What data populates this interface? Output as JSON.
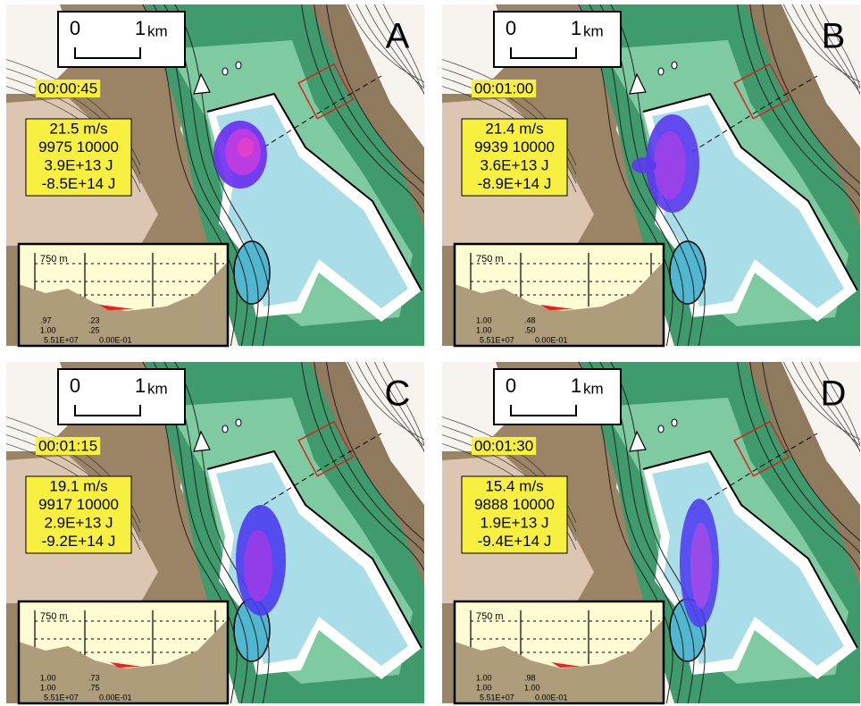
{
  "panels": [
    {
      "letter": "A",
      "scale": {
        "zero": "0",
        "one": "1",
        "unit": "km"
      },
      "time": "00:00:45",
      "stats": [
        "21.5 m/s",
        "9975 10000",
        "3.9E+13 J",
        "-8.5E+14 J"
      ],
      "inset": {
        "height": "750 m",
        "rows": [
          [
            ".97",
            ".23"
          ],
          [
            "1.00",
            ".25"
          ]
        ],
        "footer": [
          "5.51E+07",
          "0.00E-01"
        ]
      }
    },
    {
      "letter": "B",
      "scale": {
        "zero": "0",
        "one": "1",
        "unit": "km"
      },
      "time": "00:01:00",
      "stats": [
        "21.4 m/s",
        "9939 10000",
        "3.6E+13 J",
        "-8.9E+14 J"
      ],
      "inset": {
        "height": "750 m",
        "rows": [
          [
            "1.00",
            ".48"
          ],
          [
            "1.00",
            ".50"
          ]
        ],
        "footer": [
          "5.51E+07",
          "0.00E-01"
        ]
      }
    },
    {
      "letter": "C",
      "scale": {
        "zero": "0",
        "one": "1",
        "unit": "km"
      },
      "time": "00:01:15",
      "stats": [
        "19.1 m/s",
        "9917 10000",
        "2.9E+13 J",
        "-9.2E+14 J"
      ],
      "inset": {
        "height": "750 m",
        "rows": [
          [
            "1.00",
            ".73"
          ],
          [
            "1.00",
            ".75"
          ]
        ],
        "footer": [
          "5.51E+07",
          "0.00E-01"
        ]
      }
    },
    {
      "letter": "D",
      "scale": {
        "zero": "0",
        "one": "1",
        "unit": "km"
      },
      "time": "00:01:30",
      "stats": [
        "15.4 m/s",
        "9888 10000",
        "1.9E+13 J",
        "-9.4E+14 J"
      ],
      "inset": {
        "height": "750 m",
        "rows": [
          [
            "1.00",
            ".98"
          ],
          [
            "1.00",
            "1.00"
          ]
        ],
        "footer": [
          "5.51E+07",
          "0.00E-01"
        ]
      }
    }
  ]
}
